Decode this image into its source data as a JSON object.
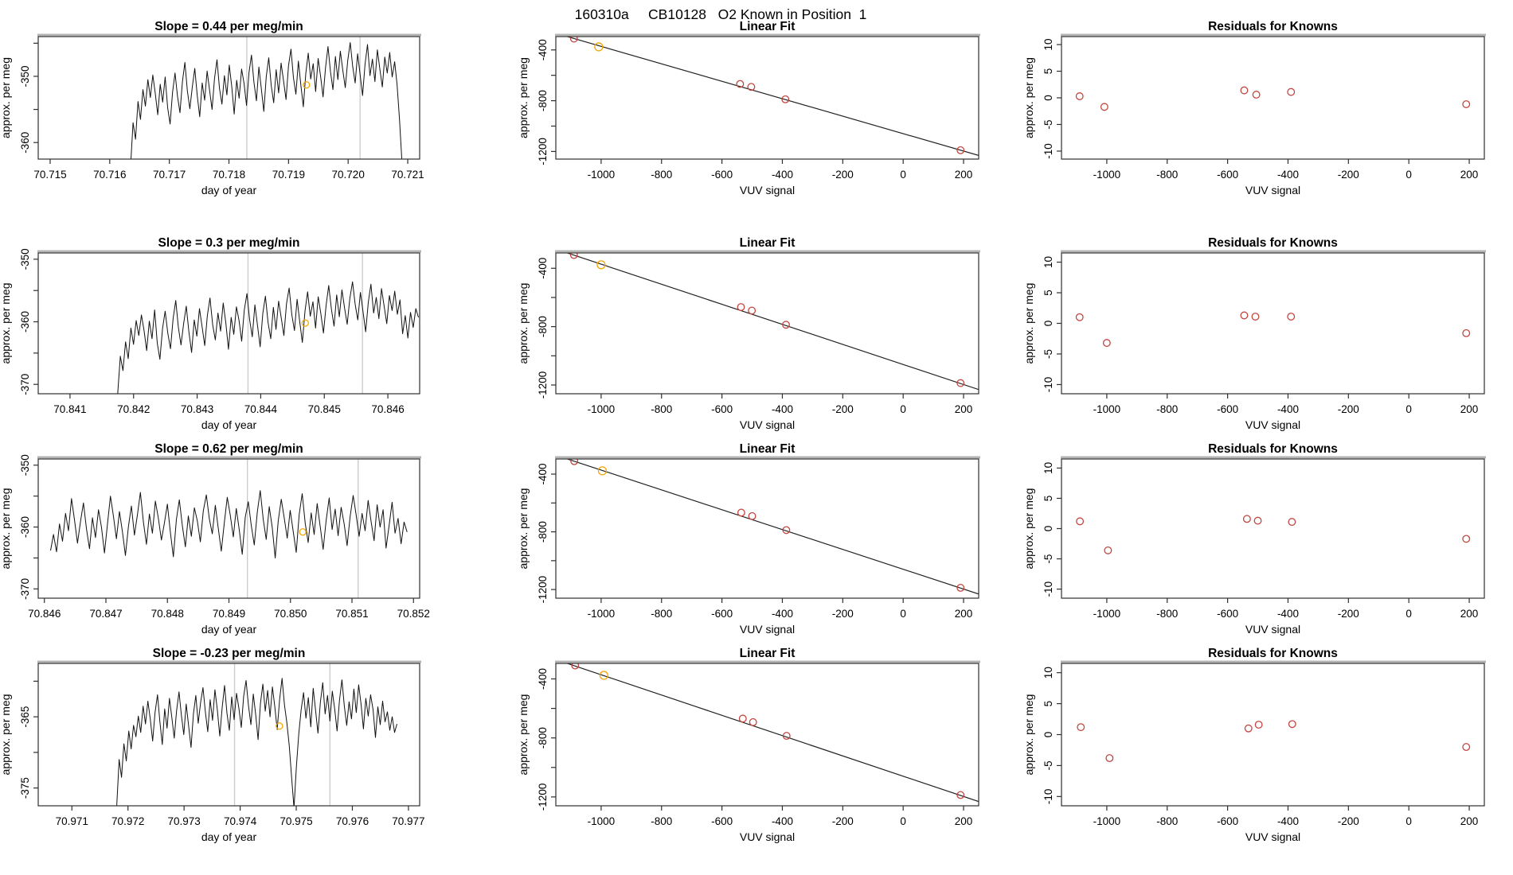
{
  "page_title": "160310a     CB10128   O2 Known in Position  1",
  "colors": {
    "point_red": "#c2453f",
    "point_orange": "#f5a400",
    "series_line": "#111111",
    "fit_line": "#222222",
    "window_line": "#cccccc",
    "box_edge": "#2f2f2f",
    "box_top": "#b3b3b3"
  },
  "chart_data": {
    "shared": {
      "ts_type": "line",
      "fit_type": "scatter",
      "res_type": "scatter",
      "ts_x_label": "day of year",
      "ts_y_label": "approx. per meg",
      "fit_title": "Linear Fit",
      "fit_x_label": "VUV signal",
      "fit_y_label": "approx. per meg",
      "res_title": "Residuals for Knowns",
      "res_x_label": "VUV signal",
      "res_y_label": "approx. per meg",
      "fit_axes": {
        "xlim": [
          -1150,
          250
        ],
        "ylim": [
          -1260,
          -295
        ],
        "xticks": [
          -1000,
          -800,
          -600,
          -400,
          -200,
          0,
          200
        ],
        "xlabels": [
          "-1000",
          "-800",
          "-600",
          "-400",
          "-200",
          "0",
          "200"
        ],
        "yticks": [
          -1200,
          -1000,
          -800,
          -600,
          -400
        ],
        "ylabels": [
          "-1200",
          "",
          "-800",
          "",
          "-400"
        ]
      },
      "res_axes": {
        "xlim": [
          -1150,
          250
        ],
        "ylim": [
          -11.5,
          11.5
        ],
        "xticks": [
          -1000,
          -800,
          -600,
          -400,
          -200,
          0,
          200
        ],
        "xlabels": [
          "-1000",
          "-800",
          "-600",
          "-400",
          "-200",
          "0",
          "200"
        ],
        "yticks": [
          -10,
          -5,
          0,
          5,
          10
        ],
        "ylabels": [
          "-10",
          "-5",
          "0",
          "5",
          "10"
        ]
      }
    },
    "rows": [
      {
        "slope_title": "Slope =  0.44  per meg/min",
        "ts": {
          "xlim": [
            70.7148,
            70.7212
          ],
          "ylim": [
            -362.5,
            -344.0
          ],
          "xticks": [
            70.715,
            70.716,
            70.717,
            70.718,
            70.719,
            70.72,
            70.721
          ],
          "xlabels": [
            "70.715",
            "70.716",
            "70.717",
            "70.718",
            "70.719",
            "70.720",
            "70.721"
          ],
          "yticks": [
            -360,
            -355,
            -350,
            -345
          ],
          "ylabels": [
            "-360",
            "",
            "-350",
            ""
          ],
          "window": [
            70.7183,
            70.7202
          ],
          "mean_point": [
            70.7193,
            -351.3
          ],
          "x0": 70.71635,
          "dx": 4.14e-05,
          "y": [
            -363.5,
            -357.0,
            -359.5,
            -353.8,
            -356.5,
            -352.0,
            -354.5,
            -350.5,
            -353.2,
            -349.8,
            -352.6,
            -355.8,
            -351.2,
            -353.9,
            -350.1,
            -354.7,
            -357.2,
            -352.4,
            -349.5,
            -353.0,
            -355.5,
            -350.8,
            -347.9,
            -352.2,
            -354.9,
            -351.6,
            -348.8,
            -352.9,
            -356.1,
            -351.0,
            -353.6,
            -349.2,
            -352.1,
            -355.0,
            -350.3,
            -347.5,
            -351.8,
            -354.2,
            -349.9,
            -352.8,
            -348.3,
            -351.5,
            -355.7,
            -350.6,
            -353.3,
            -348.9,
            -351.1,
            -354.4,
            -349.4,
            -346.8,
            -350.9,
            -353.7,
            -348.6,
            -351.9,
            -355.3,
            -350.0,
            -347.2,
            -351.4,
            -354.0,
            -349.0,
            -352.5,
            -348.0,
            -350.7,
            -353.5,
            -348.4,
            -345.9,
            -350.2,
            -352.7,
            -347.7,
            -351.3,
            -354.6,
            -349.6,
            -346.5,
            -350.4,
            -348.1,
            -352.3,
            -347.3,
            -350.0,
            -353.1,
            -348.7,
            -345.5,
            -349.3,
            -352.0,
            -347.0,
            -350.5,
            -346.2,
            -349.1,
            -351.7,
            -347.6,
            -344.9,
            -348.5,
            -351.0,
            -346.6,
            -349.7,
            -352.9,
            -348.2,
            -345.2,
            -349.9,
            -347.4,
            -350.8,
            -346.0,
            -348.9,
            -351.6,
            -347.1,
            -349.5,
            -346.4,
            -350.1,
            -347.8,
            -351.2,
            -356.5,
            -363.0
          ]
        },
        "fit": {
          "points": [
            [
              -1090,
              -311
            ],
            [
              -540,
              -668
            ],
            [
              -503,
              -691
            ],
            [
              -390,
              -789
            ],
            [
              190,
              -1190
            ]
          ],
          "orange": [
            -1008,
            -376
          ],
          "line": {
            "slope": -0.6875,
            "intercept": -1059.4
          }
        },
        "res": {
          "points": [
            [
              -1090,
              0.3
            ],
            [
              -1008,
              -1.7
            ],
            [
              -545,
              1.4
            ],
            [
              -505,
              0.6
            ],
            [
              -390,
              1.1
            ],
            [
              190,
              -1.2
            ]
          ]
        }
      },
      {
        "slope_title": "Slope =  0.3  per meg/min",
        "ts": {
          "xlim": [
            70.8405,
            70.8465
          ],
          "ylim": [
            -371.5,
            -349.0
          ],
          "xticks": [
            70.841,
            70.842,
            70.843,
            70.844,
            70.845,
            70.846
          ],
          "xlabels": [
            "70.841",
            "70.842",
            "70.843",
            "70.844",
            "70.845",
            "70.846"
          ],
          "yticks": [
            -370,
            -365,
            -360,
            -355,
            -350
          ],
          "ylabels": [
            "-370",
            "",
            "-360",
            "",
            "-350"
          ],
          "window": [
            70.8438,
            70.8456
          ],
          "mean_point": [
            70.8447,
            -360.2
          ],
          "x0": 70.84175,
          "dx": 4.15e-05,
          "y": [
            -371.5,
            -365.5,
            -367.8,
            -363.2,
            -365.9,
            -361.0,
            -363.6,
            -359.8,
            -362.2,
            -358.9,
            -361.4,
            -364.6,
            -359.9,
            -362.7,
            -358.1,
            -363.4,
            -366.0,
            -361.1,
            -358.3,
            -361.8,
            -364.3,
            -359.5,
            -356.6,
            -360.9,
            -363.7,
            -360.3,
            -357.5,
            -361.6,
            -364.9,
            -359.7,
            -362.3,
            -357.9,
            -360.8,
            -363.8,
            -359.0,
            -356.2,
            -360.5,
            -362.9,
            -358.6,
            -361.5,
            -357.0,
            -360.2,
            -364.4,
            -359.3,
            -362.0,
            -357.6,
            -359.8,
            -363.1,
            -358.1,
            -355.5,
            -359.6,
            -362.4,
            -357.3,
            -360.6,
            -364.0,
            -358.7,
            -355.9,
            -360.1,
            -362.7,
            -357.7,
            -361.2,
            -356.7,
            -359.4,
            -362.2,
            -357.1,
            -354.6,
            -358.9,
            -361.4,
            -356.4,
            -360.0,
            -363.3,
            -358.3,
            -355.2,
            -359.1,
            -356.8,
            -361.0,
            -356.0,
            -358.7,
            -361.8,
            -357.4,
            -354.2,
            -358.0,
            -360.7,
            -355.7,
            -359.2,
            -354.9,
            -357.8,
            -360.4,
            -356.3,
            -353.6,
            -357.2,
            -359.7,
            -355.3,
            -358.4,
            -361.6,
            -356.9,
            -354.0,
            -358.6,
            -356.1,
            -359.5,
            -354.7,
            -357.5,
            -360.3,
            -355.8,
            -358.2,
            -355.1,
            -358.8,
            -356.5,
            -361.9,
            -359.0,
            -362.6,
            -358.5,
            -360.9,
            -357.9,
            -359.3
          ]
        },
        "fit": {
          "points": [
            [
              -1090,
              -309
            ],
            [
              -537,
              -666
            ],
            [
              -501,
              -690
            ],
            [
              -388,
              -787
            ],
            [
              190,
              -1187
            ]
          ],
          "orange": [
            -1000,
            -376
          ],
          "line": {
            "slope": -0.6875,
            "intercept": -1059.4
          }
        },
        "res": {
          "points": [
            [
              -1090,
              1.0
            ],
            [
              -1000,
              -3.2
            ],
            [
              -545,
              1.3
            ],
            [
              -508,
              1.1
            ],
            [
              -390,
              1.1
            ],
            [
              190,
              -1.6
            ]
          ]
        }
      },
      {
        "slope_title": "Slope =  0.62  per meg/min",
        "ts": {
          "xlim": [
            70.8459,
            70.8521
          ],
          "ylim": [
            -371.5,
            -349.0
          ],
          "xticks": [
            70.846,
            70.847,
            70.848,
            70.849,
            70.85,
            70.851,
            70.852
          ],
          "xlabels": [
            "70.846",
            "70.847",
            "70.848",
            "70.849",
            "70.850",
            "70.851",
            "70.852"
          ],
          "yticks": [
            -370,
            -365,
            -360,
            -355,
            -350
          ],
          "ylabels": [
            "-370",
            "",
            "-360",
            "",
            "-350"
          ],
          "window": [
            70.8493,
            70.8511
          ],
          "mean_point": [
            70.8502,
            -360.8
          ],
          "x0": 70.8461,
          "dx": 4.87e-05,
          "y": [
            -363.8,
            -361.2,
            -364.0,
            -359.5,
            -362.3,
            -357.8,
            -360.6,
            -355.4,
            -358.9,
            -362.6,
            -359.1,
            -356.1,
            -360.3,
            -363.5,
            -358.5,
            -361.7,
            -357.2,
            -360.0,
            -364.2,
            -359.6,
            -355.0,
            -358.3,
            -361.9,
            -357.5,
            -360.8,
            -364.6,
            -359.9,
            -356.6,
            -361.3,
            -358.0,
            -354.4,
            -359.2,
            -362.8,
            -357.9,
            -361.0,
            -355.8,
            -358.6,
            -362.1,
            -359.4,
            -356.3,
            -360.9,
            -364.8,
            -358.8,
            -355.6,
            -359.8,
            -363.2,
            -358.2,
            -361.5,
            -356.9,
            -359.0,
            -362.4,
            -357.4,
            -354.8,
            -358.7,
            -361.1,
            -356.5,
            -360.2,
            -363.9,
            -359.3,
            -355.2,
            -358.1,
            -361.6,
            -357.0,
            -360.5,
            -364.4,
            -358.4,
            -355.9,
            -359.7,
            -362.9,
            -357.6,
            -354.1,
            -358.8,
            -362.0,
            -356.7,
            -360.1,
            -365.0,
            -359.0,
            -355.5,
            -358.5,
            -361.8,
            -357.3,
            -360.7,
            -364.1,
            -358.0,
            -354.6,
            -359.4,
            -362.5,
            -357.7,
            -361.2,
            -356.2,
            -359.9,
            -363.6,
            -358.9,
            -355.3,
            -360.4,
            -357.1,
            -361.4,
            -356.8,
            -359.5,
            -363.0,
            -358.3,
            -354.9,
            -358.0,
            -361.5,
            -357.8,
            -360.6,
            -355.7,
            -359.1,
            -362.2,
            -356.4,
            -360.0,
            -357.2,
            -363.4,
            -359.8,
            -356.0,
            -361.0,
            -358.6,
            -362.7,
            -359.2,
            -360.8
          ]
        },
        "fit": {
          "points": [
            [
              -1089,
              -310
            ],
            [
              -536,
              -667
            ],
            [
              -500,
              -691
            ],
            [
              -387,
              -788
            ],
            [
              190,
              -1188
            ]
          ],
          "orange": [
            -996,
            -377
          ],
          "line": {
            "slope": -0.6875,
            "intercept": -1059.4
          }
        },
        "res": {
          "points": [
            [
              -1089,
              1.2
            ],
            [
              -996,
              -3.6
            ],
            [
              -536,
              1.6
            ],
            [
              -500,
              1.3
            ],
            [
              -387,
              1.1
            ],
            [
              190,
              -1.7
            ]
          ]
        }
      },
      {
        "slope_title": "Slope =  -0.23  per meg/min",
        "ts": {
          "xlim": [
            70.9704,
            70.9772
          ],
          "ylim": [
            -377.5,
            -357.5
          ],
          "xticks": [
            70.971,
            70.972,
            70.973,
            70.974,
            70.975,
            70.976,
            70.977
          ],
          "xlabels": [
            "70.971",
            "70.972",
            "70.973",
            "70.974",
            "70.975",
            "70.976",
            "70.977"
          ],
          "yticks": [
            -375,
            -370,
            -365,
            -360
          ],
          "ylabels": [
            "-375",
            "",
            "-365",
            ""
          ],
          "window": [
            70.9739,
            70.9756
          ],
          "mean_point": [
            70.9747,
            -366.3
          ],
          "x0": 70.9718,
          "dx": 4.27e-05,
          "y": [
            -377.5,
            -371.0,
            -373.5,
            -368.8,
            -371.2,
            -367.0,
            -369.5,
            -366.2,
            -367.8,
            -364.9,
            -367.2,
            -363.5,
            -366.0,
            -362.8,
            -365.3,
            -368.4,
            -364.4,
            -361.9,
            -365.7,
            -368.9,
            -363.9,
            -366.6,
            -362.4,
            -365.1,
            -368.0,
            -364.1,
            -361.5,
            -364.8,
            -367.5,
            -363.2,
            -366.3,
            -369.3,
            -364.6,
            -362.0,
            -365.9,
            -363.0,
            -360.9,
            -364.3,
            -367.1,
            -362.6,
            -365.5,
            -361.2,
            -364.0,
            -367.7,
            -363.7,
            -360.6,
            -364.5,
            -366.9,
            -362.2,
            -365.4,
            -361.7,
            -363.8,
            -366.5,
            -362.1,
            -359.9,
            -363.4,
            -366.1,
            -361.8,
            -364.7,
            -368.2,
            -363.1,
            -360.4,
            -364.2,
            -361.3,
            -365.0,
            -360.8,
            -363.6,
            -366.8,
            -362.5,
            -359.6,
            -363.3,
            -365.8,
            -369.0,
            -373.5,
            -377.8,
            -372.0,
            -367.4,
            -364.0,
            -361.6,
            -365.2,
            -362.3,
            -366.4,
            -361.0,
            -364.1,
            -367.3,
            -363.0,
            -360.2,
            -364.6,
            -362.0,
            -365.6,
            -361.4,
            -363.9,
            -367.0,
            -362.7,
            -359.8,
            -363.5,
            -366.2,
            -362.9,
            -365.3,
            -361.1,
            -364.4,
            -360.5,
            -363.2,
            -366.7,
            -362.4,
            -364.9,
            -361.9,
            -364.0,
            -367.9,
            -363.6,
            -366.1,
            -362.8,
            -365.7,
            -364.3,
            -366.9,
            -365.0,
            -367.2,
            -366.0
          ]
        },
        "fit": {
          "points": [
            [
              -1086,
              -309
            ],
            [
              -531,
              -669
            ],
            [
              -497,
              -693
            ],
            [
              -386,
              -786
            ],
            [
              190,
              -1187
            ]
          ],
          "orange": [
            -991,
            -376
          ],
          "line": {
            "slope": -0.6875,
            "intercept": -1059.4
          }
        },
        "res": {
          "points": [
            [
              -1086,
              1.2
            ],
            [
              -991,
              -3.8
            ],
            [
              -531,
              1.0
            ],
            [
              -497,
              1.6
            ],
            [
              -386,
              1.7
            ],
            [
              190,
              -2.0
            ]
          ]
        }
      }
    ]
  }
}
